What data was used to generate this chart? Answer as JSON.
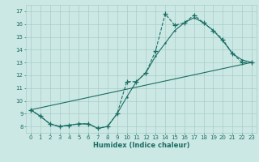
{
  "xlabel": "Humidex (Indice chaleur)",
  "bg_color": "#cce8e4",
  "line_color": "#1a6e64",
  "grid_color": "#a8ccc8",
  "xlim": [
    -0.5,
    23.5
  ],
  "ylim": [
    7.5,
    17.5
  ],
  "xticks": [
    0,
    1,
    2,
    3,
    4,
    5,
    6,
    7,
    8,
    9,
    10,
    11,
    12,
    13,
    14,
    15,
    16,
    17,
    18,
    19,
    20,
    21,
    22,
    23
  ],
  "yticks": [
    8,
    9,
    10,
    11,
    12,
    13,
    14,
    15,
    16,
    17
  ],
  "series1_x": [
    0,
    1,
    2,
    3,
    4,
    5,
    6,
    7,
    8,
    9,
    10,
    11,
    12,
    13,
    14,
    15,
    16,
    17,
    18,
    19,
    20,
    21,
    22,
    23
  ],
  "series1_y": [
    9.3,
    8.8,
    8.2,
    8.0,
    8.1,
    8.2,
    8.2,
    7.85,
    8.0,
    9.0,
    11.5,
    11.5,
    12.2,
    13.9,
    16.8,
    15.9,
    16.1,
    16.7,
    16.1,
    15.5,
    14.8,
    13.7,
    13.0,
    13.0
  ],
  "series2_x": [
    0,
    1,
    2,
    3,
    4,
    5,
    6,
    7,
    8,
    9,
    10,
    11,
    12,
    13,
    14,
    15,
    16,
    17,
    18,
    19,
    20,
    21,
    22,
    23
  ],
  "series2_y": [
    9.3,
    8.8,
    8.2,
    8.0,
    8.1,
    8.2,
    8.2,
    7.85,
    8.0,
    9.0,
    10.3,
    11.5,
    12.2,
    13.5,
    14.5,
    15.5,
    16.1,
    16.5,
    16.1,
    15.5,
    14.7,
    13.7,
    13.2,
    13.0
  ],
  "series3_x": [
    0,
    23
  ],
  "series3_y": [
    9.3,
    13.0
  ]
}
